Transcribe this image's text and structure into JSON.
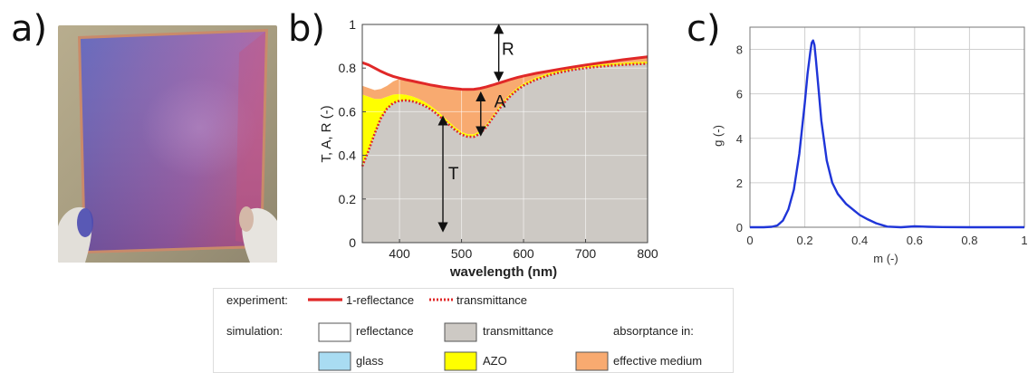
{
  "panel_labels": {
    "a": "a)",
    "b": "b)",
    "c": "c)"
  },
  "colors": {
    "experiment_line": "#e02828",
    "transmittance_fill": "#cdc9c4",
    "reflectance_fill": "#ffffff",
    "glass_fill": "#a9dcf2",
    "azo_fill": "#ffff00",
    "effective_medium_fill": "#f8aa70",
    "distribution_line": "#1f35d8",
    "arrow": "#111111"
  },
  "legend": {
    "experiment_label": "experiment:",
    "simulation_label": "simulation:",
    "absorptance_label": "absorptance in:",
    "items": {
      "one_minus_reflectance": "1-reflectance",
      "transmittance_exp": "transmittance",
      "reflectance_sim": "reflectance",
      "transmittance_sim": "transmittance",
      "glass": "glass",
      "azo": "AZO",
      "effective_medium": "effective medium"
    }
  },
  "chart_data": [
    {
      "type": "area",
      "panel": "b",
      "xlabel": "wavelength (nm)",
      "ylabel": "T, A, R (-)",
      "xlim": [
        340,
        800
      ],
      "ylim": [
        0,
        1
      ],
      "xticks": [
        400,
        500,
        600,
        700,
        800
      ],
      "yticks": [
        0,
        0.2,
        0.4,
        0.6,
        0.8,
        1
      ],
      "ytick_labels": [
        "0",
        "0.2",
        "0.4",
        "0.6",
        "0.8",
        "1"
      ],
      "grid": true,
      "annotations": [
        {
          "text": "R",
          "x": 575,
          "y": 0.86,
          "arrow_from": 0.98,
          "arrow_to": 0.76
        },
        {
          "text": "A",
          "x": 562,
          "y": 0.62,
          "arrow_from": 0.67,
          "arrow_to": 0.51
        },
        {
          "text": "T",
          "x": 487,
          "y": 0.29,
          "arrow_from": 0.56,
          "arrow_to": 0.07
        }
      ],
      "x": [
        340,
        350,
        360,
        370,
        380,
        390,
        400,
        410,
        420,
        430,
        440,
        450,
        460,
        470,
        480,
        490,
        500,
        510,
        520,
        530,
        540,
        550,
        560,
        570,
        580,
        590,
        600,
        620,
        640,
        660,
        680,
        700,
        720,
        740,
        760,
        780,
        800
      ],
      "series": [
        {
          "name": "1-reflectance",
          "source": "experiment",
          "style": "solid",
          "values": [
            0.825,
            0.815,
            0.8,
            0.785,
            0.772,
            0.762,
            0.754,
            0.747,
            0.741,
            0.735,
            0.729,
            0.723,
            0.718,
            0.713,
            0.709,
            0.706,
            0.703,
            0.702,
            0.703,
            0.707,
            0.714,
            0.722,
            0.731,
            0.74,
            0.749,
            0.757,
            0.764,
            0.776,
            0.786,
            0.796,
            0.805,
            0.814,
            0.822,
            0.83,
            0.838,
            0.845,
            0.852
          ]
        },
        {
          "name": "transmittance",
          "source": "experiment",
          "style": "dotted",
          "values": [
            0.35,
            0.42,
            0.5,
            0.57,
            0.615,
            0.64,
            0.65,
            0.652,
            0.648,
            0.64,
            0.628,
            0.612,
            0.59,
            0.565,
            0.54,
            0.515,
            0.495,
            0.485,
            0.485,
            0.5,
            0.53,
            0.57,
            0.61,
            0.645,
            0.675,
            0.7,
            0.72,
            0.747,
            0.766,
            0.781,
            0.792,
            0.8,
            0.806,
            0.811,
            0.815,
            0.818,
            0.82
          ]
        },
        {
          "name": "transmittance",
          "source": "simulation",
          "style": "filled",
          "values": [
            0.345,
            0.415,
            0.495,
            0.565,
            0.61,
            0.635,
            0.645,
            0.648,
            0.645,
            0.637,
            0.625,
            0.609,
            0.588,
            0.563,
            0.538,
            0.513,
            0.493,
            0.483,
            0.483,
            0.498,
            0.528,
            0.568,
            0.608,
            0.643,
            0.672,
            0.696,
            0.716,
            0.743,
            0.762,
            0.777,
            0.788,
            0.796,
            0.802,
            0.807,
            0.811,
            0.814,
            0.816
          ]
        },
        {
          "name": "glass",
          "source": "simulation",
          "style": "filled",
          "values": [
            0.004,
            0.004,
            0.004,
            0.004,
            0.004,
            0.004,
            0.004,
            0.004,
            0.004,
            0.004,
            0.004,
            0.004,
            0.004,
            0.004,
            0.004,
            0.004,
            0.004,
            0.004,
            0.004,
            0.004,
            0.004,
            0.004,
            0.004,
            0.004,
            0.004,
            0.004,
            0.004,
            0.004,
            0.004,
            0.004,
            0.004,
            0.004,
            0.004,
            0.004,
            0.004,
            0.004,
            0.004
          ]
        },
        {
          "name": "AZO",
          "source": "simulation",
          "style": "filled",
          "values": [
            0.33,
            0.25,
            0.16,
            0.09,
            0.055,
            0.04,
            0.032,
            0.026,
            0.022,
            0.019,
            0.017,
            0.015,
            0.014,
            0.013,
            0.012,
            0.011,
            0.011,
            0.01,
            0.01,
            0.01,
            0.01,
            0.01,
            0.01,
            0.01,
            0.01,
            0.01,
            0.01,
            0.01,
            0.01,
            0.01,
            0.01,
            0.01,
            0.01,
            0.01,
            0.01,
            0.01,
            0.01
          ]
        },
        {
          "name": "effective medium",
          "source": "simulation",
          "style": "filled",
          "values": [
            0.04,
            0.04,
            0.04,
            0.045,
            0.05,
            0.06,
            0.07,
            0.066,
            0.071,
            0.076,
            0.083,
            0.095,
            0.112,
            0.133,
            0.155,
            0.178,
            0.195,
            0.205,
            0.206,
            0.195,
            0.172,
            0.14,
            0.109,
            0.082,
            0.063,
            0.047,
            0.034,
            0.019,
            0.01,
            0.005,
            0.003,
            0.004,
            0.006,
            0.009,
            0.013,
            0.017,
            0.022
          ]
        }
      ]
    },
    {
      "type": "line",
      "panel": "c",
      "xlabel": "m (-)",
      "ylabel": "g (-)",
      "xlim": [
        0,
        1
      ],
      "ylim": [
        0,
        9
      ],
      "xticks": [
        0,
        0.2,
        0.4,
        0.6,
        0.8,
        1
      ],
      "xtick_labels": [
        "0",
        "0.2",
        "0.4",
        "0.6",
        "0.8",
        "1"
      ],
      "yticks": [
        0,
        2,
        4,
        6,
        8
      ],
      "ytick_labels": [
        "0",
        "2",
        "4",
        "6",
        "8"
      ],
      "grid": true,
      "x": [
        0,
        0.05,
        0.08,
        0.1,
        0.12,
        0.14,
        0.16,
        0.18,
        0.2,
        0.21,
        0.22,
        0.225,
        0.23,
        0.235,
        0.24,
        0.25,
        0.26,
        0.28,
        0.3,
        0.32,
        0.35,
        0.38,
        0.4,
        0.43,
        0.46,
        0.5,
        0.55,
        0.6,
        0.65,
        0.7,
        0.8,
        0.9,
        1.0
      ],
      "series": [
        {
          "name": "",
          "values": [
            0,
            0,
            0.02,
            0.08,
            0.3,
            0.8,
            1.7,
            3.3,
            5.6,
            6.9,
            7.9,
            8.3,
            8.4,
            8.2,
            7.6,
            6.2,
            4.8,
            3.0,
            2.0,
            1.5,
            1.05,
            0.75,
            0.55,
            0.35,
            0.18,
            0.03,
            0.0,
            0.04,
            0.02,
            0.01,
            0.0,
            0.0,
            0.0
          ]
        }
      ]
    }
  ]
}
